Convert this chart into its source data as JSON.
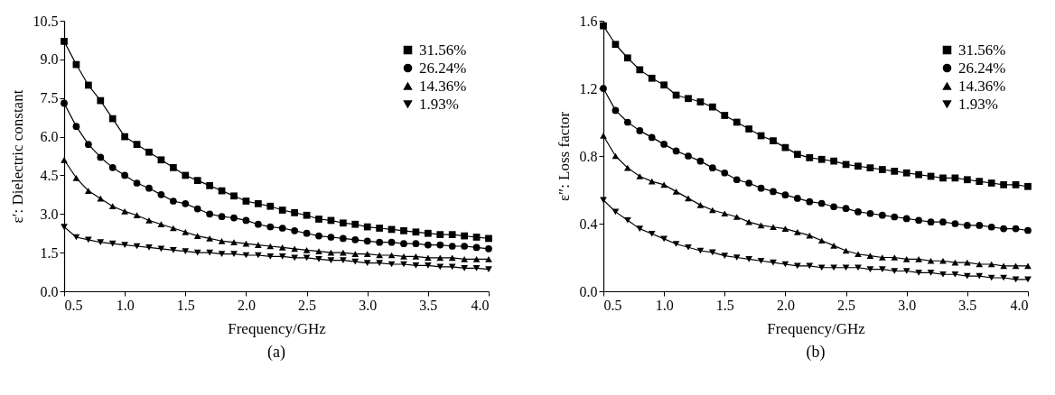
{
  "chart_data": [
    {
      "type": "line",
      "xlabel": "Frequency/GHz",
      "ylabel": "ε′: Dielectric constant",
      "annotations": [
        "(a)"
      ],
      "legend": "top right",
      "grid": false,
      "x": [
        0.5,
        0.6,
        0.7,
        0.8,
        0.9,
        1.0,
        1.1,
        1.2,
        1.3,
        1.4,
        1.5,
        1.6,
        1.7,
        1.8,
        1.9,
        2.0,
        2.1,
        2.2,
        2.3,
        2.4,
        2.5,
        2.6,
        2.7,
        2.8,
        2.9,
        3.0,
        3.1,
        3.2,
        3.3,
        3.4,
        3.5,
        3.6,
        3.7,
        3.8,
        3.9,
        4.0
      ],
      "xlim": [
        0.5,
        4.0
      ],
      "xticks": [
        0.5,
        {
          "value": 1,
          "label": "1.0"
        },
        1.5,
        {
          "value": 2,
          "label": "2.0"
        },
        2.5,
        {
          "value": 3,
          "label": "3.0"
        },
        3.5,
        {
          "value": 4,
          "label": "4.0"
        }
      ],
      "ylim": [
        0,
        10.5
      ],
      "yticks": [
        {
          "value": 0,
          "label": "0.0"
        },
        1.5,
        {
          "value": 3,
          "label": "3.0"
        },
        4.5,
        {
          "value": 6,
          "label": "6.0"
        },
        7.5,
        {
          "value": 9,
          "label": "9.0"
        },
        10.5
      ],
      "series": [
        {
          "name": "31.56%",
          "color": "#000000",
          "marker": "square",
          "values": [
            9.7,
            8.8,
            8.0,
            7.4,
            6.7,
            6.0,
            5.7,
            5.4,
            5.1,
            4.8,
            4.5,
            4.3,
            4.1,
            3.9,
            3.7,
            3.5,
            3.4,
            3.3,
            3.15,
            3.05,
            2.95,
            2.8,
            2.75,
            2.65,
            2.6,
            2.5,
            2.45,
            2.4,
            2.35,
            2.3,
            2.25,
            2.2,
            2.2,
            2.15,
            2.1,
            2.05
          ]
        },
        {
          "name": "26.24%",
          "color": "#000000",
          "marker": "circle",
          "values": [
            7.3,
            6.4,
            5.7,
            5.2,
            4.8,
            4.5,
            4.2,
            4.0,
            3.75,
            3.5,
            3.4,
            3.2,
            3.0,
            2.9,
            2.85,
            2.75,
            2.6,
            2.5,
            2.45,
            2.35,
            2.25,
            2.15,
            2.1,
            2.05,
            2.0,
            1.95,
            1.9,
            1.9,
            1.85,
            1.85,
            1.8,
            1.8,
            1.75,
            1.75,
            1.7,
            1.65
          ]
        },
        {
          "name": "14.36%",
          "color": "#000000",
          "marker": "triangle",
          "values": [
            5.1,
            4.4,
            3.9,
            3.6,
            3.3,
            3.1,
            2.95,
            2.75,
            2.6,
            2.45,
            2.3,
            2.15,
            2.05,
            1.95,
            1.9,
            1.85,
            1.8,
            1.75,
            1.7,
            1.65,
            1.6,
            1.55,
            1.5,
            1.5,
            1.45,
            1.45,
            1.4,
            1.4,
            1.35,
            1.35,
            1.3,
            1.3,
            1.3,
            1.25,
            1.25,
            1.25
          ]
        },
        {
          "name": "1.93%",
          "color": "#000000",
          "marker": "triangle-down",
          "values": [
            2.5,
            2.1,
            2.0,
            1.9,
            1.85,
            1.8,
            1.75,
            1.7,
            1.65,
            1.6,
            1.55,
            1.5,
            1.5,
            1.45,
            1.45,
            1.4,
            1.4,
            1.35,
            1.35,
            1.3,
            1.3,
            1.25,
            1.2,
            1.2,
            1.15,
            1.1,
            1.1,
            1.05,
            1.05,
            1.0,
            1.0,
            0.95,
            0.95,
            0.9,
            0.9,
            0.85
          ]
        }
      ]
    },
    {
      "type": "line",
      "xlabel": "Frequency/GHz",
      "ylabel": "ε″: Loss factor",
      "annotations": [
        "(b)"
      ],
      "legend": "top right",
      "grid": false,
      "x": [
        0.5,
        0.6,
        0.7,
        0.8,
        0.9,
        1.0,
        1.1,
        1.2,
        1.3,
        1.4,
        1.5,
        1.6,
        1.7,
        1.8,
        1.9,
        2.0,
        2.1,
        2.2,
        2.3,
        2.4,
        2.5,
        2.6,
        2.7,
        2.8,
        2.9,
        3.0,
        3.1,
        3.2,
        3.3,
        3.4,
        3.5,
        3.6,
        3.7,
        3.8,
        3.9,
        4.0
      ],
      "xlim": [
        0.5,
        4.0
      ],
      "xticks": [
        0.5,
        {
          "value": 1,
          "label": "1.0"
        },
        1.5,
        {
          "value": 2,
          "label": "2.0"
        },
        2.5,
        {
          "value": 3,
          "label": "3.0"
        },
        3.5,
        {
          "value": 4,
          "label": "4.0"
        }
      ],
      "ylim": [
        0,
        1.6
      ],
      "yticks": [
        {
          "value": 0,
          "label": "0.0"
        },
        0.4,
        0.8,
        1.2,
        1.6
      ],
      "series": [
        {
          "name": "31.56%",
          "color": "#000000",
          "marker": "square",
          "values": [
            1.57,
            1.46,
            1.38,
            1.31,
            1.26,
            1.22,
            1.16,
            1.14,
            1.12,
            1.09,
            1.04,
            1.0,
            0.96,
            0.92,
            0.89,
            0.85,
            0.81,
            0.79,
            0.78,
            0.77,
            0.75,
            0.74,
            0.73,
            0.72,
            0.71,
            0.7,
            0.69,
            0.68,
            0.67,
            0.67,
            0.66,
            0.65,
            0.64,
            0.63,
            0.63,
            0.62
          ]
        },
        {
          "name": "26.24%",
          "color": "#000000",
          "marker": "circle",
          "values": [
            1.2,
            1.07,
            1.0,
            0.95,
            0.91,
            0.87,
            0.83,
            0.8,
            0.77,
            0.73,
            0.7,
            0.66,
            0.64,
            0.61,
            0.59,
            0.57,
            0.55,
            0.53,
            0.52,
            0.5,
            0.49,
            0.47,
            0.46,
            0.45,
            0.44,
            0.43,
            0.42,
            0.41,
            0.41,
            0.4,
            0.39,
            0.39,
            0.38,
            0.37,
            0.37,
            0.36
          ]
        },
        {
          "name": "14.36%",
          "color": "#000000",
          "marker": "triangle",
          "values": [
            0.92,
            0.8,
            0.73,
            0.68,
            0.65,
            0.63,
            0.59,
            0.55,
            0.51,
            0.48,
            0.46,
            0.44,
            0.41,
            0.39,
            0.38,
            0.37,
            0.35,
            0.33,
            0.3,
            0.27,
            0.24,
            0.22,
            0.21,
            0.2,
            0.2,
            0.19,
            0.19,
            0.18,
            0.18,
            0.17,
            0.17,
            0.16,
            0.16,
            0.15,
            0.15,
            0.15
          ]
        },
        {
          "name": "1.93%",
          "color": "#000000",
          "marker": "triangle-down",
          "values": [
            0.54,
            0.47,
            0.42,
            0.37,
            0.34,
            0.31,
            0.28,
            0.26,
            0.24,
            0.23,
            0.21,
            0.2,
            0.19,
            0.18,
            0.17,
            0.16,
            0.15,
            0.15,
            0.14,
            0.14,
            0.14,
            0.14,
            0.13,
            0.13,
            0.12,
            0.12,
            0.11,
            0.11,
            0.1,
            0.1,
            0.09,
            0.09,
            0.08,
            0.08,
            0.07,
            0.07
          ]
        }
      ]
    }
  ]
}
